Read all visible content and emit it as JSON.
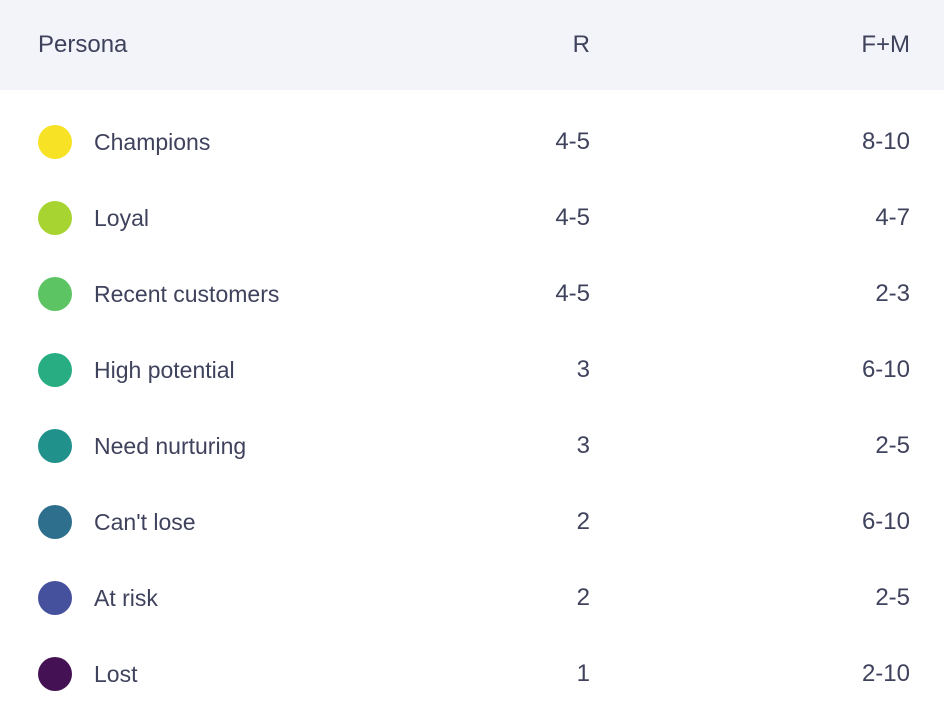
{
  "table": {
    "columns": {
      "persona": "Persona",
      "r": "R",
      "fm": "F+M"
    },
    "rows": [
      {
        "persona": "Champions",
        "dot_color": "#F7E225",
        "r": "4-5",
        "fm": "8-10"
      },
      {
        "persona": "Loyal",
        "dot_color": "#A8D432",
        "r": "4-5",
        "fm": "4-7"
      },
      {
        "persona": "Recent customers",
        "dot_color": "#5CC462",
        "r": "4-5",
        "fm": "2-3"
      },
      {
        "persona": "High potential",
        "dot_color": "#27AD81",
        "r": "3",
        "fm": "6-10"
      },
      {
        "persona": "Need nurturing",
        "dot_color": "#21918C",
        "r": "3",
        "fm": "2-5"
      },
      {
        "persona": "Can't lose",
        "dot_color": "#2E6F8E",
        "r": "2",
        "fm": "6-10"
      },
      {
        "persona": "At risk",
        "dot_color": "#46519E",
        "r": "2",
        "fm": "2-5"
      },
      {
        "persona": "Lost",
        "dot_color": "#441254",
        "r": "1",
        "fm": "2-10"
      }
    ]
  },
  "colors": {
    "header_bg": "#F3F4F9",
    "row_bg": "#FFFFFF",
    "text": "#3F425C"
  }
}
